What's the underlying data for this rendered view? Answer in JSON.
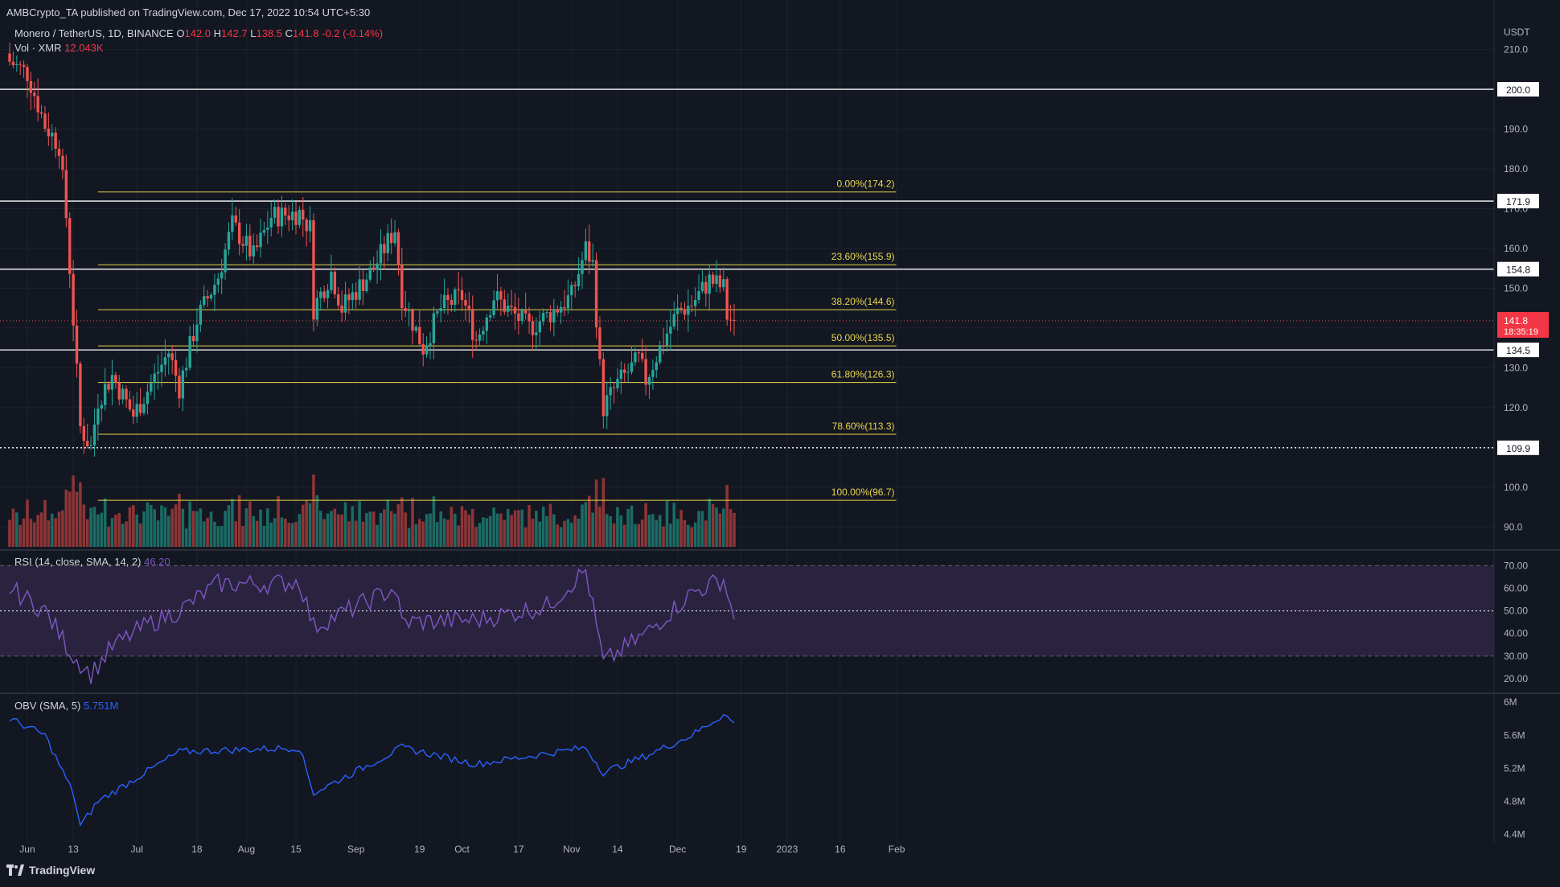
{
  "header": {
    "published": "AMBCrypto_TA published on TradingView.com, Dec 17, 2022 10:54 UTC+5:30",
    "symbol": "Monero / TetherUS, 1D, BINANCE",
    "ohlc": {
      "o_label": "O",
      "o": "142.0",
      "h_label": "H",
      "h": "142.7",
      "l_label": "L",
      "l": "138.5",
      "c_label": "C",
      "c": "141.8",
      "change": "-0.2 (-0.14%)"
    },
    "volume_label": "Vol · XMR",
    "volume_value": "12.043K"
  },
  "rsi_header": {
    "label": "RSI (14, close, SMA, 14, 2)",
    "value": "46.20"
  },
  "obv_header": {
    "label": "OBV (SMA, 5)",
    "value": "5.751M"
  },
  "branding": {
    "name": "TradingView"
  },
  "colors": {
    "background": "#131722",
    "up": "#26a69a",
    "down": "#ef5350",
    "vol_up": "#1b6b64",
    "vol_down": "#8c3536",
    "fib": "#e8d64a",
    "white_line": "#ffffff",
    "rsi_line": "#7e57c2",
    "rsi_band": "#2a2340",
    "obv_line": "#2962ff",
    "grid": "#1e222d",
    "axis_text": "#b2b5be"
  },
  "chart_data": [
    {
      "type": "candlestick",
      "quote_currency": "USDT",
      "x_ticks": [
        "Jun",
        "13",
        "Jul",
        "18",
        "Aug",
        "15",
        "Sep",
        "19",
        "Oct",
        "17",
        "Nov",
        "14",
        "Dec",
        "19",
        "2023",
        "16",
        "Feb"
      ],
      "y_ticks": [
        "90.0",
        "100.0",
        "110.0",
        "120.0",
        "130.0",
        "140.0",
        "150.0",
        "160.0",
        "170.0",
        "180.0",
        "190.0",
        "200.0",
        "210.0"
      ],
      "ylim": [
        85,
        218
      ],
      "ohlc_checkpoints": [
        {
          "date": "2022-05-26",
          "close": 207
        },
        {
          "date": "2022-05-31",
          "close": 204
        },
        {
          "date": "2022-06-05",
          "close": 191
        },
        {
          "date": "2022-06-09",
          "close": 186
        },
        {
          "date": "2022-06-11",
          "close": 168
        },
        {
          "date": "2022-06-13",
          "close": 142
        },
        {
          "date": "2022-06-15",
          "close": 115
        },
        {
          "date": "2022-06-18",
          "close": 110
        },
        {
          "date": "2022-06-20",
          "close": 122
        },
        {
          "date": "2022-06-24",
          "close": 128
        },
        {
          "date": "2022-06-30",
          "close": 118
        },
        {
          "date": "2022-07-10",
          "close": 134
        },
        {
          "date": "2022-07-13",
          "close": 125
        },
        {
          "date": "2022-07-18",
          "close": 142
        },
        {
          "date": "2022-07-24",
          "close": 153
        },
        {
          "date": "2022-07-28",
          "close": 166
        },
        {
          "date": "2022-08-03",
          "close": 158
        },
        {
          "date": "2022-08-08",
          "close": 168
        },
        {
          "date": "2022-08-16",
          "close": 169
        },
        {
          "date": "2022-08-19",
          "close": 165
        },
        {
          "date": "2022-08-20",
          "close": 145
        },
        {
          "date": "2022-08-25",
          "close": 154
        },
        {
          "date": "2022-08-28",
          "close": 145
        },
        {
          "date": "2022-09-06",
          "close": 155
        },
        {
          "date": "2022-09-12",
          "close": 165
        },
        {
          "date": "2022-09-14",
          "close": 148
        },
        {
          "date": "2022-09-20",
          "close": 135
        },
        {
          "date": "2022-09-25",
          "close": 145
        },
        {
          "date": "2022-10-01",
          "close": 148
        },
        {
          "date": "2022-10-05",
          "close": 137
        },
        {
          "date": "2022-10-10",
          "close": 148
        },
        {
          "date": "2022-10-20",
          "close": 140
        },
        {
          "date": "2022-10-25",
          "close": 143
        },
        {
          "date": "2022-11-01",
          "close": 148
        },
        {
          "date": "2022-11-05",
          "close": 160
        },
        {
          "date": "2022-11-07",
          "close": 156
        },
        {
          "date": "2022-11-09",
          "close": 130
        },
        {
          "date": "2022-11-10",
          "close": 120
        },
        {
          "date": "2022-11-14",
          "close": 126
        },
        {
          "date": "2022-11-20",
          "close": 132
        },
        {
          "date": "2022-11-22",
          "close": 127
        },
        {
          "date": "2022-11-27",
          "close": 137
        },
        {
          "date": "2022-12-01",
          "close": 144
        },
        {
          "date": "2022-12-05",
          "close": 146
        },
        {
          "date": "2022-12-10",
          "close": 152
        },
        {
          "date": "2022-12-14",
          "close": 150
        },
        {
          "date": "2022-12-15",
          "close": 143
        },
        {
          "date": "2022-12-16",
          "close": 142
        },
        {
          "date": "2022-12-17",
          "close": 141.8
        }
      ],
      "horizontal_levels": [
        {
          "value": 200.0,
          "label": "200.0"
        },
        {
          "value": 171.9,
          "label": "171.9"
        },
        {
          "value": 154.8,
          "label": "154.8"
        },
        {
          "value": 134.5,
          "label": "134.5"
        },
        {
          "value": 109.9,
          "label": "109.9",
          "style": "dotted"
        }
      ],
      "fib_levels": [
        {
          "value": 174.2,
          "label": "0.00%(174.2)"
        },
        {
          "value": 155.9,
          "label": "23.60%(155.9)"
        },
        {
          "value": 144.6,
          "label": "38.20%(144.6)"
        },
        {
          "value": 135.5,
          "label": "50.00%(135.5)"
        },
        {
          "value": 126.3,
          "label": "61.80%(126.3)"
        },
        {
          "value": 113.3,
          "label": "78.60%(113.3)"
        },
        {
          "value": 96.7,
          "label": "100.00%(96.7)"
        }
      ],
      "last_price": {
        "value": 141.8,
        "label": "141.8",
        "countdown": "18:35:19"
      }
    },
    {
      "type": "line",
      "name": "RSI (14, close, SMA, 14, 2)",
      "y_ticks": [
        "20.00",
        "30.00",
        "40.00",
        "50.00",
        "60.00",
        "70.00"
      ],
      "ylim": [
        15,
        73
      ],
      "band": [
        30,
        70
      ],
      "midline": 50,
      "checkpoints": [
        {
          "date": "2022-05-26",
          "value": 60
        },
        {
          "date": "2022-06-05",
          "value": 50
        },
        {
          "date": "2022-06-13",
          "value": 30
        },
        {
          "date": "2022-06-18",
          "value": 22
        },
        {
          "date": "2022-06-24",
          "value": 34
        },
        {
          "date": "2022-07-04",
          "value": 44
        },
        {
          "date": "2022-07-13",
          "value": 50
        },
        {
          "date": "2022-07-24",
          "value": 62
        },
        {
          "date": "2022-08-08",
          "value": 62
        },
        {
          "date": "2022-08-16",
          "value": 63
        },
        {
          "date": "2022-08-20",
          "value": 43
        },
        {
          "date": "2022-09-12",
          "value": 60
        },
        {
          "date": "2022-09-14",
          "value": 45
        },
        {
          "date": "2022-10-05",
          "value": 46
        },
        {
          "date": "2022-10-25",
          "value": 52
        },
        {
          "date": "2022-11-05",
          "value": 68
        },
        {
          "date": "2022-11-10",
          "value": 27
        },
        {
          "date": "2022-11-22",
          "value": 40
        },
        {
          "date": "2022-12-05",
          "value": 58
        },
        {
          "date": "2022-12-14",
          "value": 64
        },
        {
          "date": "2022-12-17",
          "value": 46.2
        }
      ]
    },
    {
      "type": "line",
      "name": "OBV (SMA, 5)",
      "y_ticks": [
        "4.4M",
        "4.8M",
        "5.2M",
        "5.6M",
        "6M"
      ],
      "ylim": [
        4.3,
        6.05
      ],
      "checkpoints": [
        {
          "date": "2022-05-26",
          "value": 5.8
        },
        {
          "date": "2022-06-05",
          "value": 5.6
        },
        {
          "date": "2022-06-13",
          "value": 4.9
        },
        {
          "date": "2022-06-15",
          "value": 4.5
        },
        {
          "date": "2022-06-20",
          "value": 4.8
        },
        {
          "date": "2022-07-13",
          "value": 5.4
        },
        {
          "date": "2022-08-16",
          "value": 5.45
        },
        {
          "date": "2022-08-20",
          "value": 4.9
        },
        {
          "date": "2022-09-14",
          "value": 5.45
        },
        {
          "date": "2022-10-05",
          "value": 5.25
        },
        {
          "date": "2022-11-05",
          "value": 5.45
        },
        {
          "date": "2022-11-10",
          "value": 5.15
        },
        {
          "date": "2022-11-22",
          "value": 5.35
        },
        {
          "date": "2022-12-05",
          "value": 5.6
        },
        {
          "date": "2022-12-14",
          "value": 5.85
        },
        {
          "date": "2022-12-17",
          "value": 5.751
        }
      ]
    }
  ]
}
